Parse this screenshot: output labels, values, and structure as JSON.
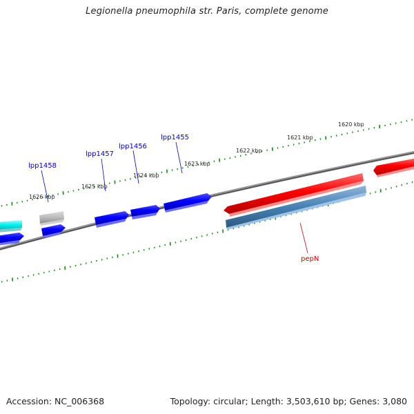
{
  "title": "Legionella pneumophila str. Paris, complete genome",
  "footer": {
    "accession": "Accession: NC_006368",
    "summary": "Topology: circular; Length: 3,503,610 bp; Genes: 3,080"
  },
  "colors": {
    "backbone": "#777777",
    "tick": "#138a13",
    "gene_label": "#0000cc",
    "gene_label_red": "#cc0000",
    "forward_gene": "#0000ff",
    "reverse_gene": "#ff0000",
    "grey_gene": "#bbbbbb",
    "cyan_gene": "#00f0f0",
    "steel_gene": "#4682b4"
  },
  "kbp_labels": [
    "1626 kbp",
    "1625 kbp",
    "1624 kbp",
    "1623 kbp",
    "1622 kbp",
    "1621 kbp",
    "1620 kbp"
  ],
  "gene_labels": [
    "lpp1458",
    "lpp1457",
    "lpp1456",
    "lpp1455",
    "pepN"
  ]
}
